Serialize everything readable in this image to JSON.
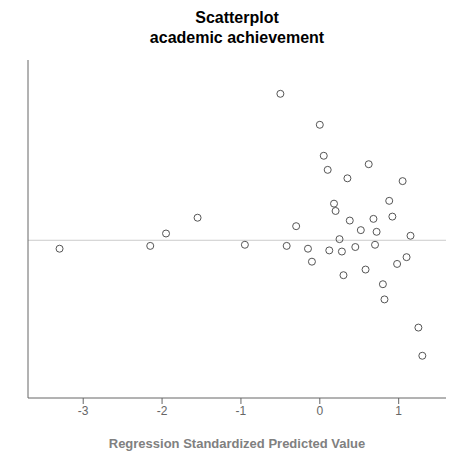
{
  "chart_data": {
    "type": "scatter",
    "title": "Scatterplot",
    "subtitle": "academic achievement",
    "x_label": "Regression Standardized Predicted Value",
    "x": [
      -3.3,
      -2.15,
      -1.95,
      -1.55,
      -0.95,
      -0.5,
      -0.42,
      -0.3,
      -0.15,
      -0.1,
      0.0,
      0.05,
      0.1,
      0.12,
      0.18,
      0.2,
      0.25,
      0.28,
      0.3,
      0.35,
      0.38,
      0.45,
      0.52,
      0.58,
      0.62,
      0.68,
      0.7,
      0.72,
      0.8,
      0.82,
      0.88,
      0.92,
      0.98,
      1.05,
      1.1,
      1.15,
      1.25,
      1.3
    ],
    "values": [
      -0.15,
      -0.1,
      0.12,
      0.4,
      -0.08,
      2.6,
      -0.1,
      0.25,
      -0.15,
      -0.38,
      2.05,
      1.5,
      1.25,
      -0.18,
      0.65,
      0.52,
      0.02,
      -0.2,
      -0.62,
      1.1,
      0.35,
      -0.12,
      0.18,
      -0.52,
      1.35,
      0.38,
      -0.08,
      0.15,
      -0.78,
      -1.05,
      0.7,
      0.42,
      -0.42,
      1.05,
      -0.3,
      0.08,
      -1.55,
      -2.05
    ],
    "xlim": [
      -3.7,
      1.6
    ],
    "ylim": [
      -2.8,
      3.2
    ],
    "xticks": [
      -3,
      -2,
      -1,
      0,
      1
    ],
    "tick_labels": "x",
    "hline": 0,
    "color": "#555555",
    "marker": "circle",
    "grid": false
  }
}
